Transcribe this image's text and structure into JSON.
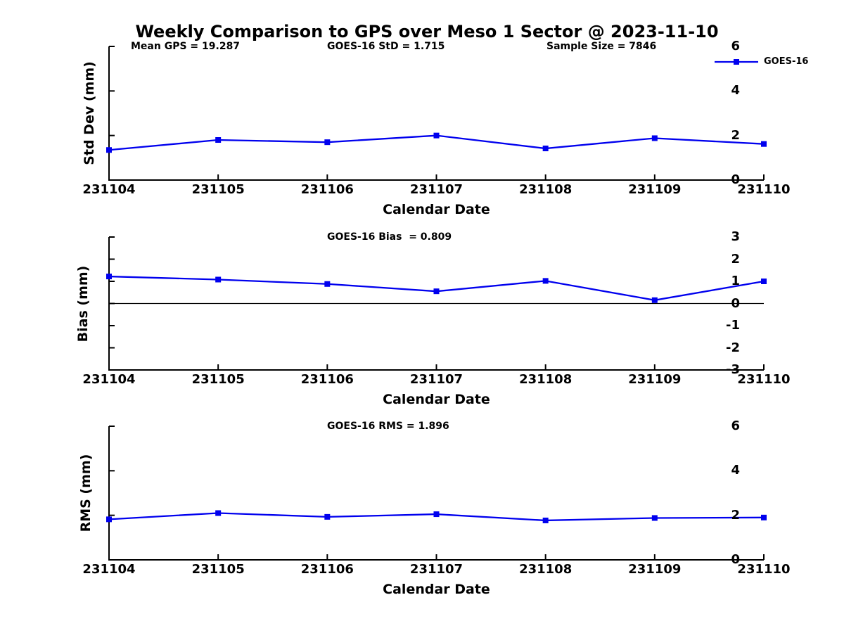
{
  "title": "Weekly Comparison to GPS over Meso 1 Sector @ 2023-11-10",
  "annotations": {
    "mean_gps": "Mean GPS = 19.287",
    "goes_std": "GOES-16 StD = 1.715",
    "sample_size": "Sample Size = 7846"
  },
  "legend": {
    "label": "GOES-16",
    "color": "#0000ee",
    "marker": "square",
    "position": "top-right"
  },
  "colors": {
    "series_blue": "#0000ee",
    "axis": "#000000",
    "background": "#ffffff"
  },
  "chart_data": [
    {
      "type": "line",
      "name": "std-dev",
      "title": "",
      "xlabel": "Calendar Date",
      "ylabel": "Std Dev (mm)",
      "annotation": "",
      "categories": [
        "231104",
        "231105",
        "231106",
        "231107",
        "231108",
        "231109",
        "231110"
      ],
      "series": [
        {
          "name": "GOES-16",
          "color": "#0000ee",
          "marker": "square",
          "values": [
            1.35,
            1.8,
            1.7,
            2.0,
            1.42,
            1.88,
            1.62
          ]
        }
      ],
      "ylim": [
        0,
        6
      ],
      "yticks": [
        0,
        2,
        4,
        6
      ],
      "zero_line": false,
      "grid": false
    },
    {
      "type": "line",
      "name": "bias",
      "title": "",
      "xlabel": "Calendar Date",
      "ylabel": "Bias (mm)",
      "annotation": "GOES-16 Bias  = 0.809",
      "categories": [
        "231104",
        "231105",
        "231106",
        "231107",
        "231108",
        "231109",
        "231110"
      ],
      "series": [
        {
          "name": "GOES-16",
          "color": "#0000ee",
          "marker": "square",
          "values": [
            1.22,
            1.08,
            0.88,
            0.55,
            1.02,
            0.15,
            1.0
          ]
        }
      ],
      "ylim": [
        -3,
        3
      ],
      "yticks": [
        3,
        2,
        1,
        0,
        -1,
        -2,
        -3
      ],
      "zero_line": true,
      "grid": false
    },
    {
      "type": "line",
      "name": "rms",
      "title": "",
      "xlabel": "Calendar Date",
      "ylabel": "RMS (mm)",
      "annotation": "GOES-16 RMS = 1.896",
      "categories": [
        "231104",
        "231105",
        "231106",
        "231107",
        "231108",
        "231109",
        "231110"
      ],
      "series": [
        {
          "name": "GOES-16",
          "color": "#0000ee",
          "marker": "square",
          "values": [
            1.82,
            2.1,
            1.93,
            2.05,
            1.77,
            1.88,
            1.9
          ]
        }
      ],
      "ylim": [
        0,
        6
      ],
      "yticks": [
        0,
        2,
        4,
        6
      ],
      "zero_line": false,
      "grid": false
    }
  ]
}
